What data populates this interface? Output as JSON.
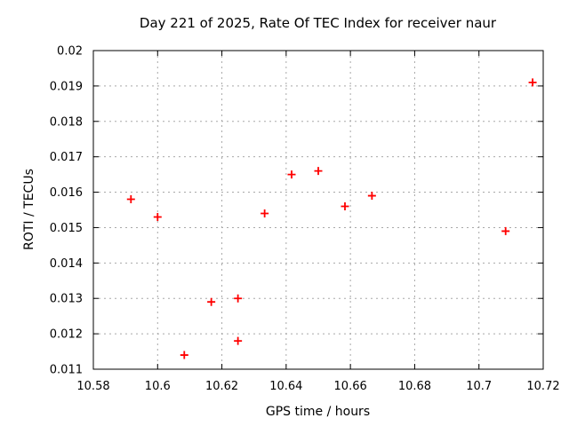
{
  "colors": {
    "background": "#ffffff",
    "text": "#000000",
    "axis": "#000000",
    "grid": "#a8a8a8",
    "marker": "#ff0000"
  },
  "chart_data": {
    "type": "scatter",
    "title": "Day 221 of 2025, Rate Of TEC Index for receiver naur",
    "xlabel": "GPS time / hours",
    "ylabel": "ROTI / TECUs",
    "xlim": [
      10.58,
      10.72
    ],
    "ylim": [
      0.011,
      0.02
    ],
    "x_ticks": [
      10.58,
      10.6,
      10.62,
      10.64,
      10.66,
      10.68,
      10.7,
      10.72
    ],
    "x_tick_labels": [
      "10.58",
      "10.6",
      "10.62",
      "10.64",
      "10.66",
      "10.68",
      "10.7",
      "10.72"
    ],
    "y_ticks": [
      0.011,
      0.012,
      0.013,
      0.014,
      0.015,
      0.016,
      0.017,
      0.018,
      0.019,
      0.02
    ],
    "y_tick_labels": [
      "0.011",
      "0.012",
      "0.013",
      "0.014",
      "0.015",
      "0.016",
      "0.017",
      "0.018",
      "0.019",
      "0.02"
    ],
    "grid": true,
    "legend": "none",
    "marker": {
      "shape": "plus",
      "color": "#ff0000",
      "size": 9
    },
    "series": [
      {
        "name": "ROTI",
        "points": [
          [
            10.5917,
            0.0158
          ],
          [
            10.6,
            0.0153
          ],
          [
            10.6083,
            0.0114
          ],
          [
            10.6167,
            0.0129
          ],
          [
            10.625,
            0.013
          ],
          [
            10.625,
            0.0118
          ],
          [
            10.6333,
            0.0154
          ],
          [
            10.6417,
            0.0165
          ],
          [
            10.65,
            0.0166
          ],
          [
            10.6583,
            0.0156
          ],
          [
            10.6667,
            0.0159
          ],
          [
            10.7083,
            0.0149
          ],
          [
            10.7167,
            0.0191
          ]
        ]
      }
    ]
  }
}
